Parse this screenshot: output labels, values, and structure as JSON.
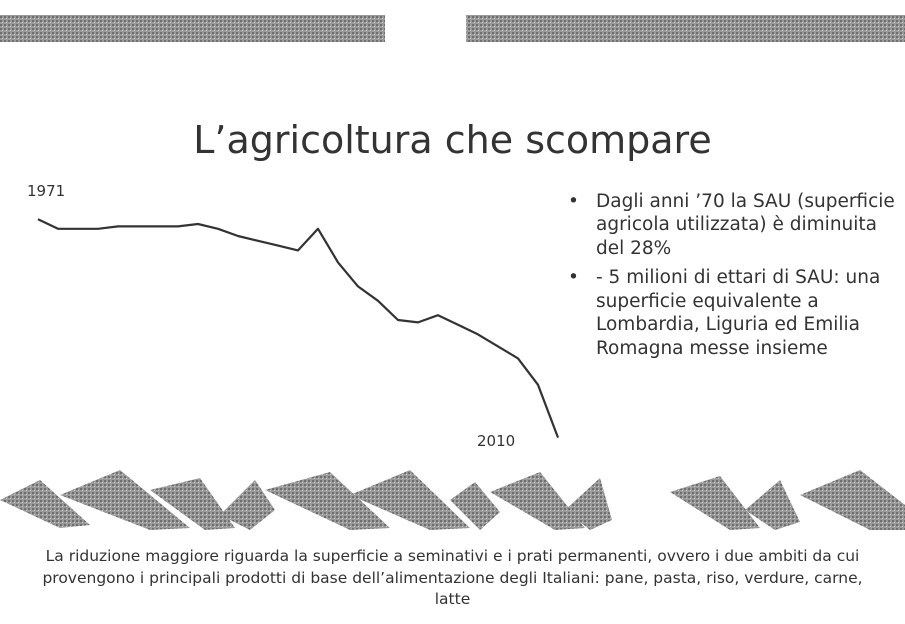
{
  "slide": {
    "title": "L’agricoltura che scompare",
    "bullets": [
      "Dagli anni ’70 la SAU (superficie agricola utilizzata) è diminuita del 28%",
      "- 5 milioni di ettari di SAU: una superficie equivalente a Lombardia, Liguria ed Emilia Romagna messe insieme"
    ],
    "caption": "La riduzione maggiore riguarda la superficie a seminativi e i prati permanenti, ovvero i due ambiti da cui provengono i principali prodotti di base dell’alimentazione degli Italiani: pane, pasta, riso, verdure, carne, latte"
  },
  "chart_data": {
    "type": "line",
    "annotations": [
      "1971",
      "2010"
    ],
    "values": [
      92,
      88,
      88,
      88,
      89,
      89,
      89,
      89,
      90,
      88,
      85,
      83,
      81,
      79,
      88,
      74,
      64,
      58,
      50,
      49,
      52,
      48,
      44,
      39,
      34,
      23,
      1
    ],
    "ylim": [
      0,
      100
    ],
    "color": "#333333"
  }
}
